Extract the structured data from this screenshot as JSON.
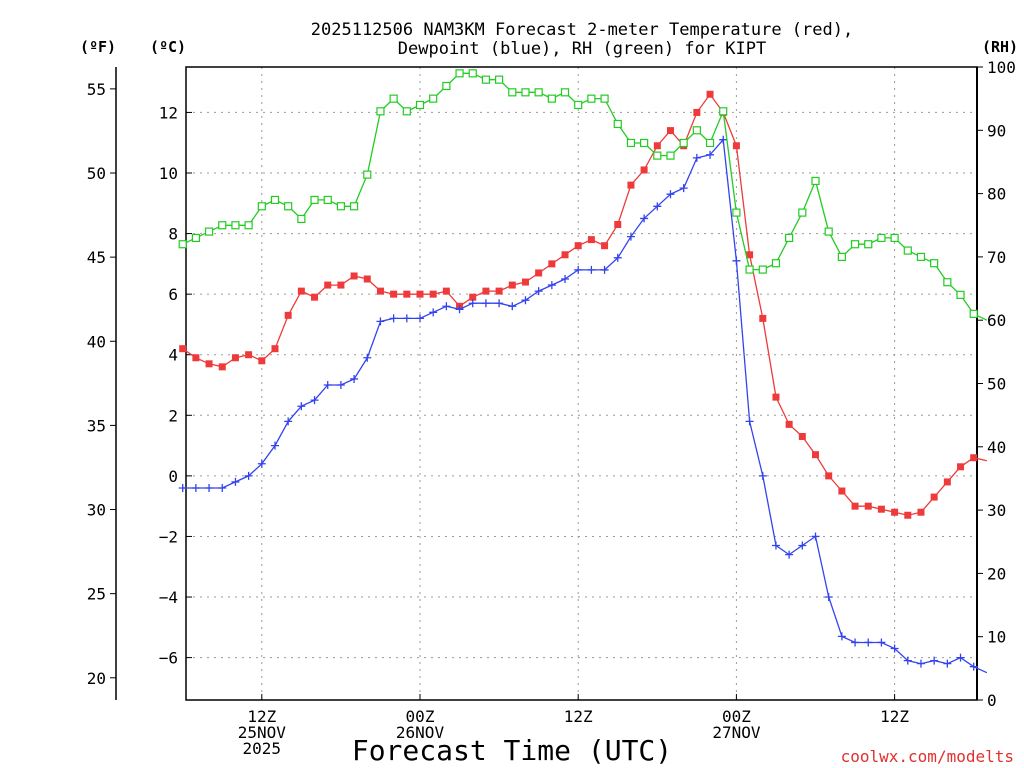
{
  "chart_data": {
    "type": "line",
    "title_line1": "2025112506 NAM3KM Forecast 2-meter Temperature (red),",
    "title_line2": "Dewpoint (blue), RH (green) for KIPT",
    "xlabel": "Forecast Time (UTC)",
    "credit": "coolwx.com/modelts",
    "unit_left_f": "(ºF)",
    "unit_left_c": "(ºC)",
    "unit_right": "(RH)",
    "x_hours_range": [
      6.25,
      66.25
    ],
    "celsius_range": [
      -7.4,
      13.5
    ],
    "rh_range": [
      0,
      100
    ],
    "x_ticks": [
      {
        "hour": 12,
        "lines": [
          "12Z",
          "25NOV",
          "2025"
        ]
      },
      {
        "hour": 24,
        "lines": [
          "00Z",
          "26NOV"
        ]
      },
      {
        "hour": 36,
        "lines": [
          "12Z"
        ]
      },
      {
        "hour": 48,
        "lines": [
          "00Z",
          "27NOV"
        ]
      },
      {
        "hour": 60,
        "lines": [
          "12Z"
        ]
      }
    ],
    "celsius_ticks": [
      "12",
      "10",
      "8",
      "6",
      "4",
      "2",
      "0",
      "−2",
      "−4",
      "−6"
    ],
    "celsius_tick_values": [
      12,
      10,
      8,
      6,
      4,
      2,
      0,
      -2,
      -4,
      -6
    ],
    "fahrenheit_ticks": [
      "55",
      "50",
      "45",
      "40",
      "35",
      "30",
      "25",
      "20"
    ],
    "fahrenheit_tick_values": [
      55,
      50,
      45,
      40,
      35,
      30,
      25,
      20
    ],
    "rh_ticks": [
      "100",
      "90",
      "80",
      "70",
      "60",
      "50",
      "40",
      "30",
      "20",
      "10",
      "0"
    ],
    "rh_tick_values": [
      100,
      90,
      80,
      70,
      60,
      50,
      40,
      30,
      20,
      10,
      0
    ],
    "start_hour": 6,
    "series": [
      {
        "name": "2-meter Temperature",
        "units": "C",
        "color": "#ee3a3a",
        "marker": "filled-square",
        "values": [
          4.2,
          3.9,
          3.7,
          3.6,
          3.9,
          4.0,
          3.8,
          4.2,
          5.3,
          6.1,
          5.9,
          6.3,
          6.3,
          6.6,
          6.5,
          6.1,
          6.0,
          6.0,
          6.0,
          6.0,
          6.1,
          5.6,
          5.9,
          6.1,
          6.1,
          6.3,
          6.4,
          6.7,
          7.0,
          7.3,
          7.6,
          7.8,
          7.6,
          8.3,
          9.6,
          10.1,
          10.9,
          11.4,
          10.9,
          12.0,
          12.6,
          12.0,
          10.9,
          7.3,
          5.2,
          2.6,
          1.7,
          1.3,
          0.7,
          0.0,
          -0.5,
          -1.0,
          -1.0,
          -1.1,
          -1.2,
          -1.3,
          -1.2,
          -0.7,
          -0.2,
          0.3,
          0.6,
          0.5
        ]
      },
      {
        "name": "Dewpoint",
        "units": "C",
        "color": "#3344ee",
        "marker": "plus",
        "values": [
          -0.4,
          -0.4,
          -0.4,
          -0.4,
          -0.2,
          0.0,
          0.4,
          1.0,
          1.8,
          2.3,
          2.5,
          3.0,
          3.0,
          3.2,
          3.9,
          5.1,
          5.2,
          5.2,
          5.2,
          5.4,
          5.6,
          5.5,
          5.7,
          5.7,
          5.7,
          5.6,
          5.8,
          6.1,
          6.3,
          6.5,
          6.8,
          6.8,
          6.8,
          7.2,
          7.9,
          8.5,
          8.9,
          9.3,
          9.5,
          10.5,
          10.6,
          11.1,
          7.1,
          1.8,
          0.0,
          -2.3,
          -2.6,
          -2.3,
          -2.0,
          -4.0,
          -5.3,
          -5.5,
          -5.5,
          -5.5,
          -5.7,
          -6.1,
          -6.2,
          -6.1,
          -6.2,
          -6.0,
          -6.3,
          -6.5
        ]
      },
      {
        "name": "Relative Humidity",
        "units": "%",
        "color": "#22cc22",
        "marker": "open-square",
        "values": [
          72,
          73,
          74,
          75,
          75,
          75,
          78,
          79,
          78,
          76,
          79,
          79,
          78,
          78,
          83,
          93,
          95,
          93,
          94,
          95,
          97,
          99,
          99,
          98,
          98,
          96,
          96,
          96,
          95,
          96,
          94,
          95,
          95,
          91,
          88,
          88,
          86,
          86,
          88,
          90,
          88,
          93,
          77,
          68,
          68,
          69,
          73,
          77,
          82,
          74,
          70,
          72,
          72,
          73,
          73,
          71,
          70,
          69,
          66,
          64,
          61,
          60
        ]
      }
    ]
  }
}
